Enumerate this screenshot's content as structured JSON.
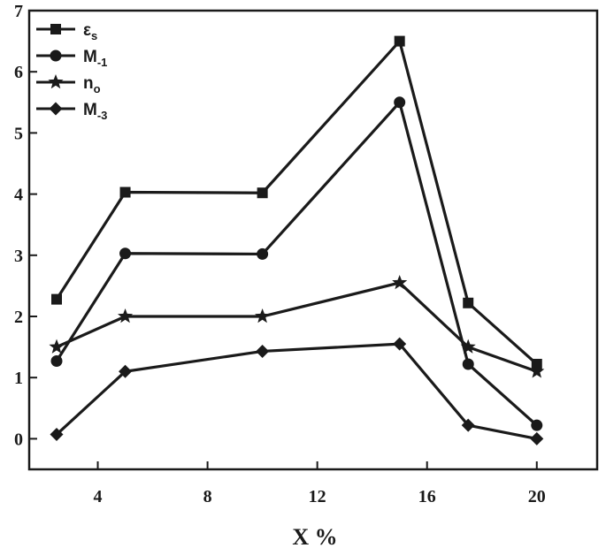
{
  "chart_data": {
    "type": "line",
    "title": "",
    "xlabel": "X %",
    "ylabel": "",
    "xlim": [
      1.5,
      22.2
    ],
    "ylim": [
      -0.5,
      7
    ],
    "xticks": [
      4,
      8,
      12,
      16,
      20
    ],
    "xtick_labels": [
      "4",
      "8",
      "12",
      "16",
      "20"
    ],
    "yticks": [
      0,
      1,
      2,
      3,
      4,
      5,
      6,
      7
    ],
    "ytick_labels": [
      "0",
      "1",
      "2",
      "3",
      "4",
      "5",
      "6",
      "7"
    ],
    "grid": false,
    "legend_position": "top-left",
    "x": [
      2.5,
      5,
      10,
      15,
      17.5,
      20
    ],
    "series": [
      {
        "name": "εs",
        "label": "ε",
        "sub": "s",
        "marker": "square",
        "values": [
          2.28,
          4.03,
          4.02,
          6.5,
          2.22,
          1.22
        ]
      },
      {
        "name": "M-1",
        "label": "M",
        "sub": "-1",
        "marker": "circle",
        "values": [
          1.27,
          3.03,
          3.02,
          5.5,
          1.22,
          0.22
        ]
      },
      {
        "name": "no",
        "label": "n",
        "sub": "o",
        "marker": "star",
        "values": [
          1.5,
          2.0,
          2.0,
          2.55,
          1.5,
          1.1
        ]
      },
      {
        "name": "M-3",
        "label": "M",
        "sub": "-3",
        "marker": "diamond",
        "values": [
          0.07,
          1.1,
          1.43,
          1.55,
          0.22,
          0.0
        ]
      }
    ],
    "colors": {
      "line": "#1a1a1a",
      "background": "#ffffff"
    }
  }
}
